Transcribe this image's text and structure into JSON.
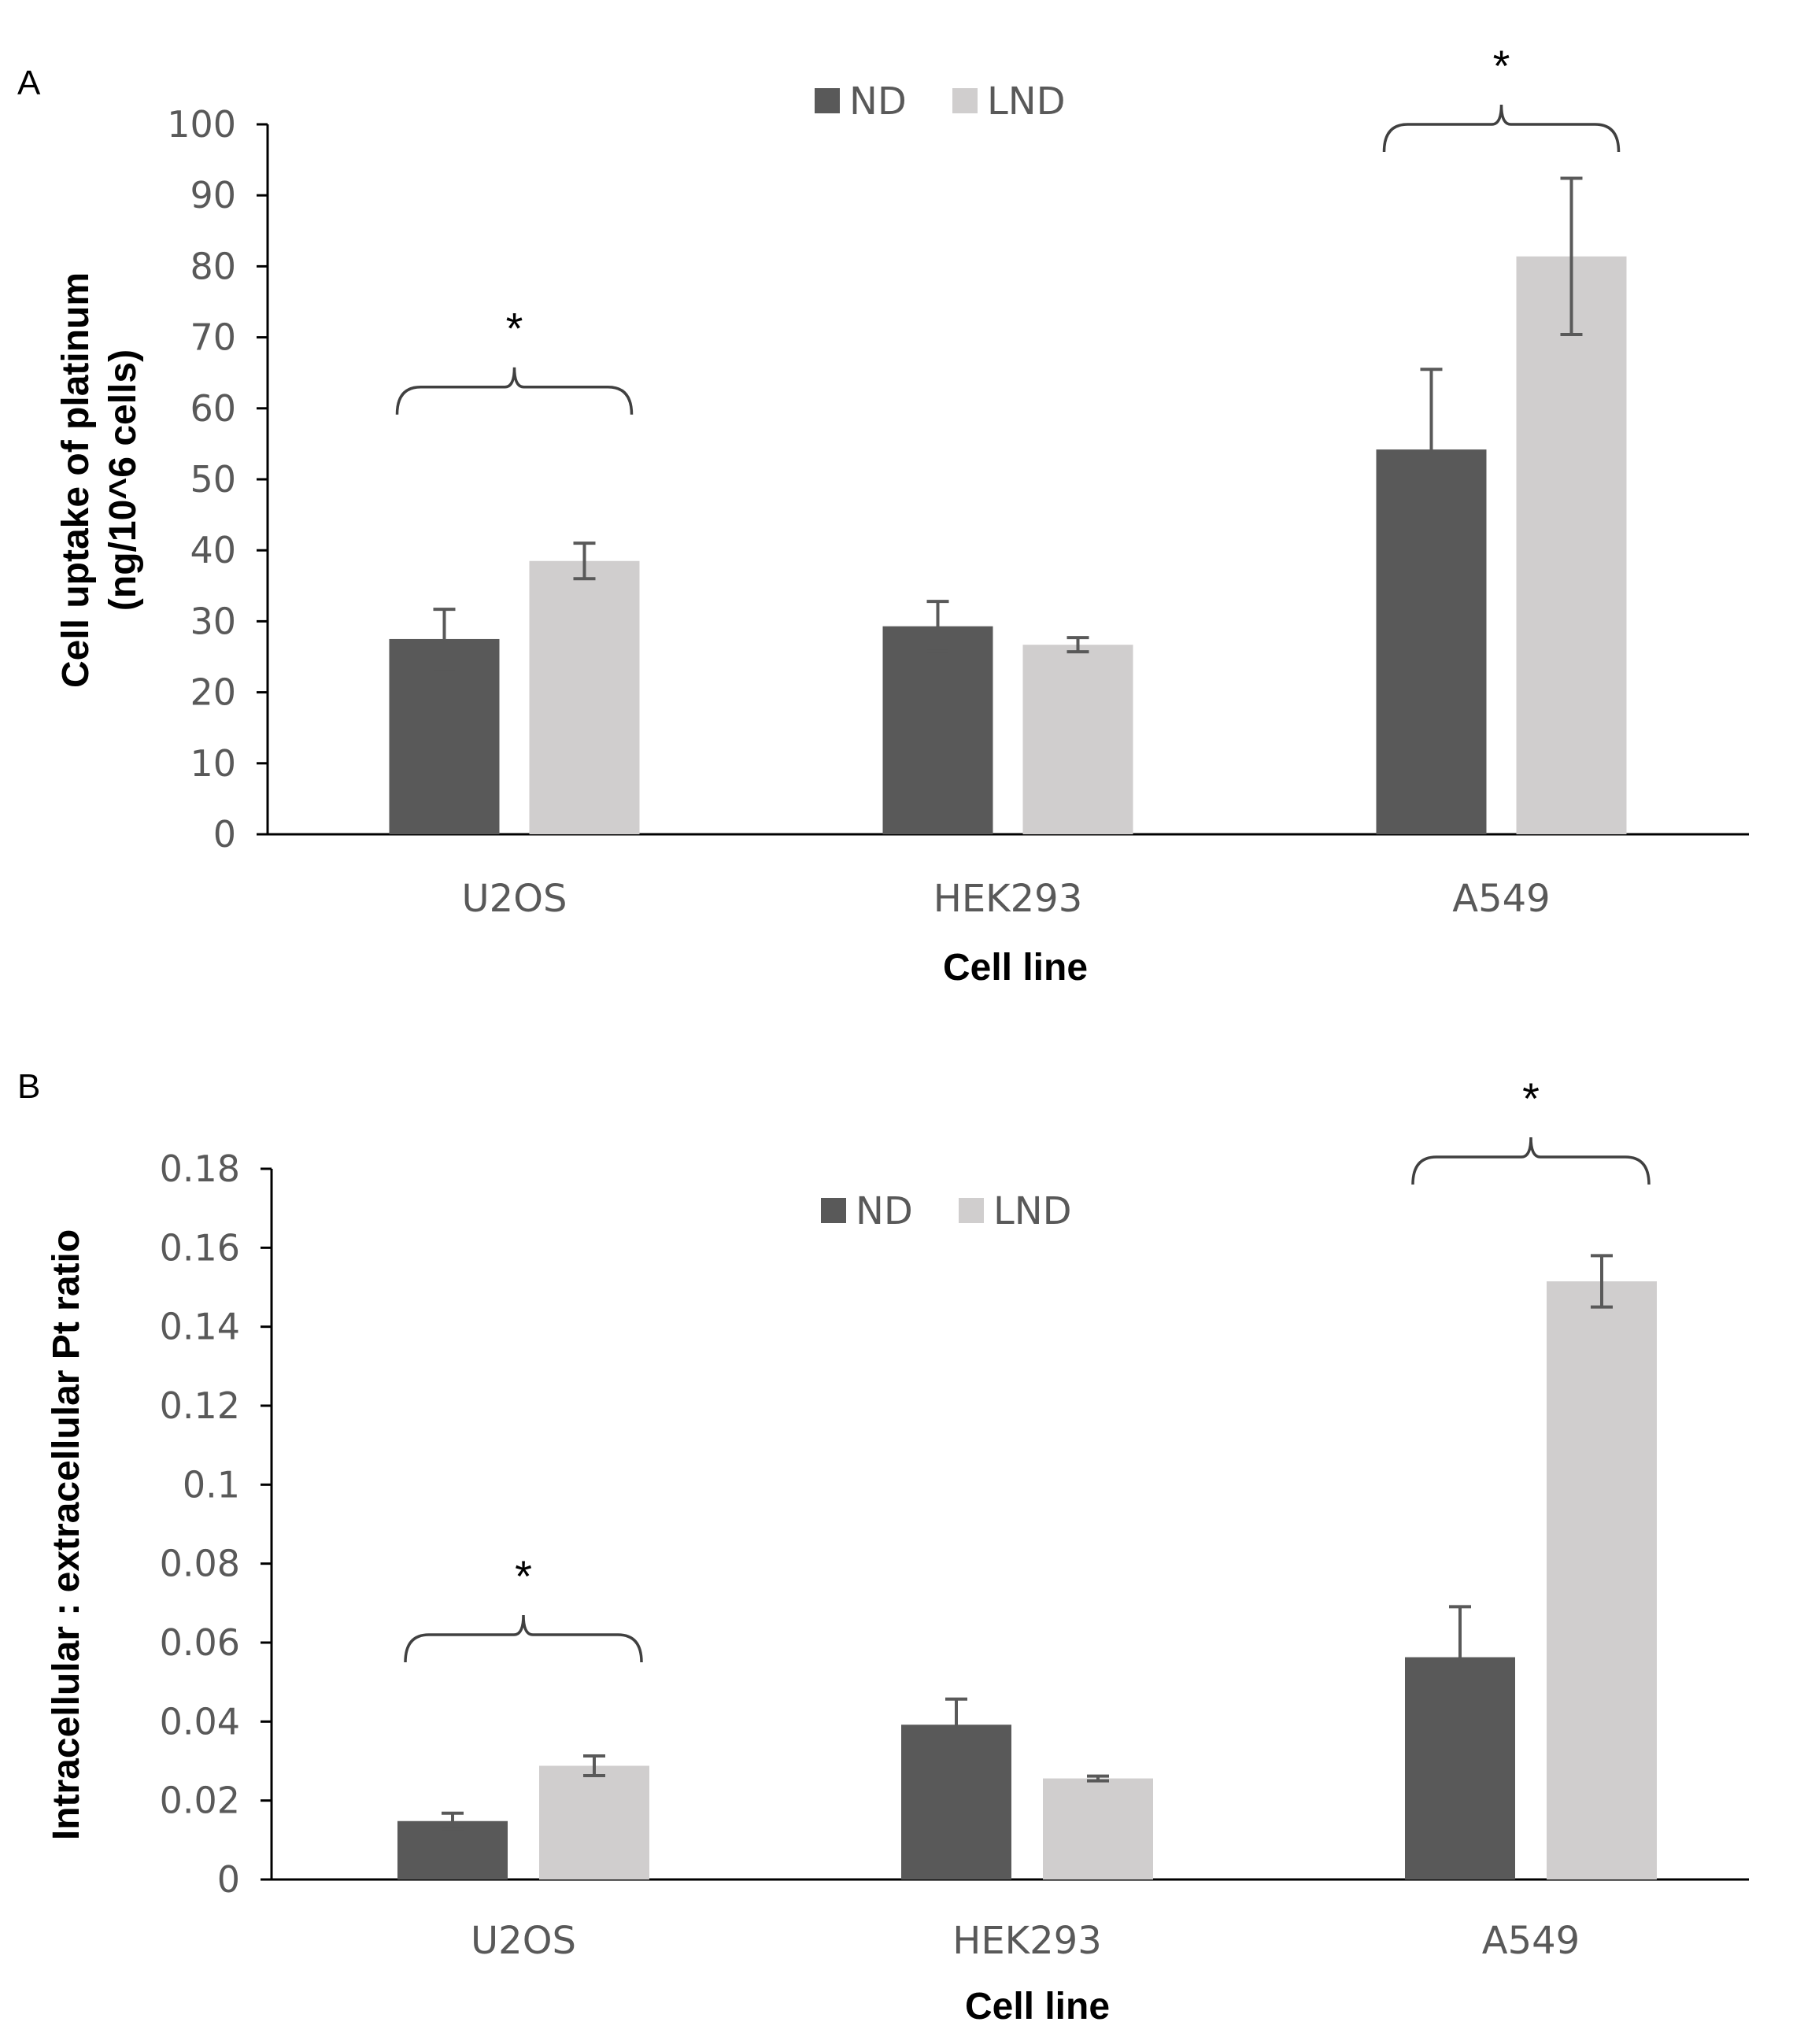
{
  "colors": {
    "ND": "#595959",
    "LND": "#d0cece",
    "axis": "#000000",
    "error": "#595959",
    "text": "#595959"
  },
  "chart_data": [
    {
      "panel": "A",
      "type": "bar",
      "categories": [
        "U2OS",
        "HEK293",
        "A549"
      ],
      "series": [
        {
          "name": "ND",
          "values": [
            27.5,
            29.3,
            54.2
          ],
          "errors": [
            4.2,
            3.5,
            11.3
          ]
        },
        {
          "name": "LND",
          "values": [
            38.5,
            26.7,
            81.4
          ],
          "errors": [
            2.5,
            1.0,
            11.0
          ]
        }
      ],
      "xlabel": "Cell line",
      "ylabel": "Cell uptake of platinum",
      "ylabel2": "(ng/10^6 cells)",
      "ylim": [
        0,
        100
      ],
      "ytick_labels": [
        "0",
        "10",
        "20",
        "30",
        "40",
        "50",
        "60",
        "70",
        "80",
        "90",
        "100"
      ],
      "legend_position": "top-center",
      "significance": [
        {
          "category": "U2OS",
          "symbol": "*",
          "y": 63
        },
        {
          "category": "A549",
          "symbol": "*",
          "y": 100
        }
      ]
    },
    {
      "panel": "B",
      "type": "bar",
      "categories": [
        "U2OS",
        "HEK293",
        "A549"
      ],
      "series": [
        {
          "name": "ND",
          "values": [
            0.0148,
            0.0392,
            0.0563
          ],
          "errors": [
            0.002,
            0.0065,
            0.0128
          ]
        },
        {
          "name": "LND",
          "values": [
            0.0288,
            0.0256,
            0.1515
          ],
          "errors": [
            0.0025,
            0.0006,
            0.0065
          ]
        }
      ],
      "xlabel": "Cell line",
      "ylabel": "Intracellular : extracellular Pt ratio",
      "ylim": [
        0,
        0.18
      ],
      "ytick_labels": [
        "0",
        "0.02",
        "0.04",
        "0.06",
        "0.08",
        "0.1",
        "0.12",
        "0.14",
        "0.16",
        "0.18"
      ],
      "legend_position": "top-center",
      "significance": [
        {
          "category": "U2OS",
          "symbol": "*",
          "y": 0.062
        },
        {
          "category": "A549",
          "symbol": "*",
          "y": 0.183
        }
      ]
    }
  ]
}
